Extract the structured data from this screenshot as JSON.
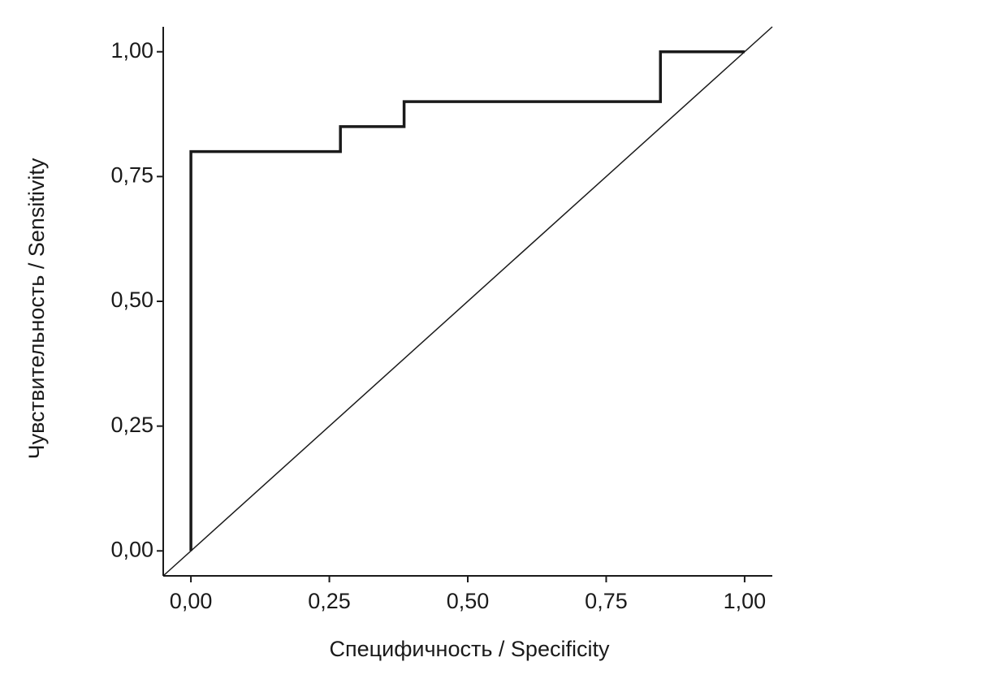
{
  "chart_data": {
    "type": "line",
    "xlabel": "Специфичность / Specificity",
    "ylabel": "Чувствительность / Sensitivity",
    "x": [
      0,
      0,
      0.27,
      0.27,
      0.385,
      0.385,
      0.848,
      0.848,
      1
    ],
    "series": [
      {
        "color": "#1a1a1a",
        "values": [
          0,
          0.8,
          0.8,
          0.85,
          0.85,
          0.9,
          0.9,
          1,
          1
        ]
      }
    ],
    "reference_line": {
      "x": [
        -0.05,
        1.05
      ],
      "y": [
        -0.05,
        1.05
      ],
      "color": "#1a1a1a"
    },
    "xlim": [
      -0.05,
      1.05
    ],
    "ylim": [
      -0.05,
      1.05
    ],
    "xticks": [
      {
        "value": 0,
        "label": "0,00"
      },
      {
        "value": 0.25,
        "label": "0,25"
      },
      {
        "value": 0.5,
        "label": "0,50"
      },
      {
        "value": 0.75,
        "label": "0,75"
      },
      {
        "value": 1,
        "label": "1,00"
      }
    ],
    "yticks": [
      {
        "value": 0,
        "label": "0,00"
      },
      {
        "value": 0.25,
        "label": "0,25"
      },
      {
        "value": 0.5,
        "label": "0,50"
      },
      {
        "value": 0.75,
        "label": "0,75"
      },
      {
        "value": 1,
        "label": "1,00"
      }
    ],
    "grid": false
  }
}
